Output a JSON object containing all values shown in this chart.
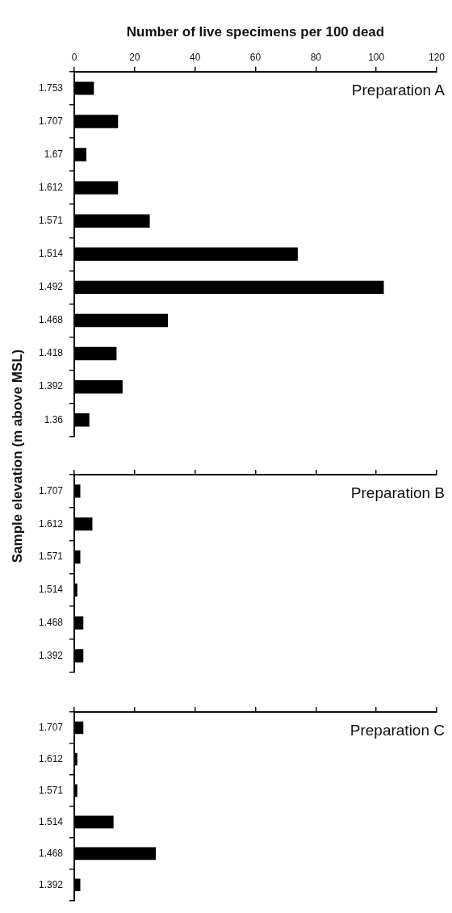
{
  "chart_data": [
    {
      "type": "bar",
      "orientation": "horizontal",
      "xlabel": "Number of live specimens per 100 dead",
      "ylabel": "Sample elevation (m above MSL)",
      "categories": [
        "1.753",
        "1.707",
        "1.67",
        "1.612",
        "1.571",
        "1.514",
        "1.492",
        "1.468",
        "1.418",
        "1.392",
        "1.36"
      ],
      "values": [
        6.5,
        14.5,
        4,
        14.5,
        25,
        74,
        102.5,
        31,
        14,
        16,
        5
      ],
      "color": "#000000",
      "xlim": [
        0,
        120
      ],
      "xticks": [
        0,
        20,
        40,
        60,
        80,
        100,
        120
      ],
      "annotations": [
        "Preparation A"
      ],
      "grid": false,
      "legend": false
    },
    {
      "type": "bar",
      "orientation": "horizontal",
      "categories": [
        "1.707",
        "1.612",
        "1.571",
        "1.514",
        "1.468",
        "1.392"
      ],
      "values": [
        2,
        6,
        2,
        1,
        3,
        3
      ],
      "color": "#000000",
      "xlim": [
        0,
        120
      ],
      "xticks": [
        0,
        20,
        40,
        60,
        80,
        100,
        120
      ],
      "tick_labels": "y",
      "annotations": [
        "Preparation B"
      ],
      "grid": false,
      "legend": false
    },
    {
      "type": "bar",
      "orientation": "horizontal",
      "categories": [
        "1.707",
        "1.612",
        "1.571",
        "1.514",
        "1.468",
        "1.392"
      ],
      "values": [
        3,
        1,
        1,
        13,
        27,
        2
      ],
      "color": "#000000",
      "xlim": [
        0,
        120
      ],
      "xticks": [
        0,
        20,
        40,
        60,
        80,
        100,
        120
      ],
      "tick_labels": "y",
      "annotations": [
        "Preparation C"
      ],
      "grid": false,
      "legend": false
    }
  ]
}
